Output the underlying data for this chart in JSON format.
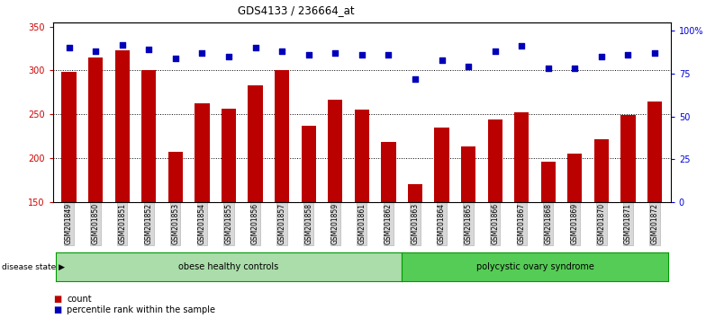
{
  "title": "GDS4133 / 236664_at",
  "samples": [
    "GSM201849",
    "GSM201850",
    "GSM201851",
    "GSM201852",
    "GSM201853",
    "GSM201854",
    "GSM201855",
    "GSM201856",
    "GSM201857",
    "GSM201858",
    "GSM201859",
    "GSM201861",
    "GSM201862",
    "GSM201863",
    "GSM201864",
    "GSM201865",
    "GSM201866",
    "GSM201867",
    "GSM201868",
    "GSM201869",
    "GSM201870",
    "GSM201871",
    "GSM201872"
  ],
  "counts": [
    298,
    315,
    323,
    300,
    207,
    263,
    256,
    283,
    300,
    237,
    267,
    255,
    218,
    170,
    235,
    213,
    244,
    252,
    196,
    205,
    222,
    249,
    265
  ],
  "percentiles": [
    90,
    88,
    92,
    89,
    84,
    87,
    85,
    90,
    88,
    86,
    87,
    86,
    86,
    72,
    83,
    79,
    88,
    91,
    78,
    78,
    85,
    86,
    87
  ],
  "groups": [
    {
      "label": "obese healthy controls",
      "start": 0,
      "end": 13,
      "color": "#aaddaa"
    },
    {
      "label": "polycystic ovary syndrome",
      "start": 13,
      "end": 23,
      "color": "#55cc55"
    }
  ],
  "bar_color": "#BB0000",
  "dot_color": "#0000BB",
  "left_ylim": [
    150,
    355
  ],
  "right_ylim": [
    0,
    105
  ],
  "left_yticks": [
    150,
    200,
    250,
    300,
    350
  ],
  "right_yticks": [
    0,
    25,
    50,
    75,
    100
  ],
  "right_yticklabels": [
    "0",
    "25",
    "50",
    "75",
    "100%"
  ],
  "grid_values": [
    200,
    250,
    300
  ],
  "xlabel_color": "#CC0000",
  "ylabel_right_color": "#0000DD",
  "background_color": "#ffffff",
  "disease_state_label": "disease state",
  "legend_count_label": "count",
  "legend_pct_label": "percentile rank within the sample"
}
